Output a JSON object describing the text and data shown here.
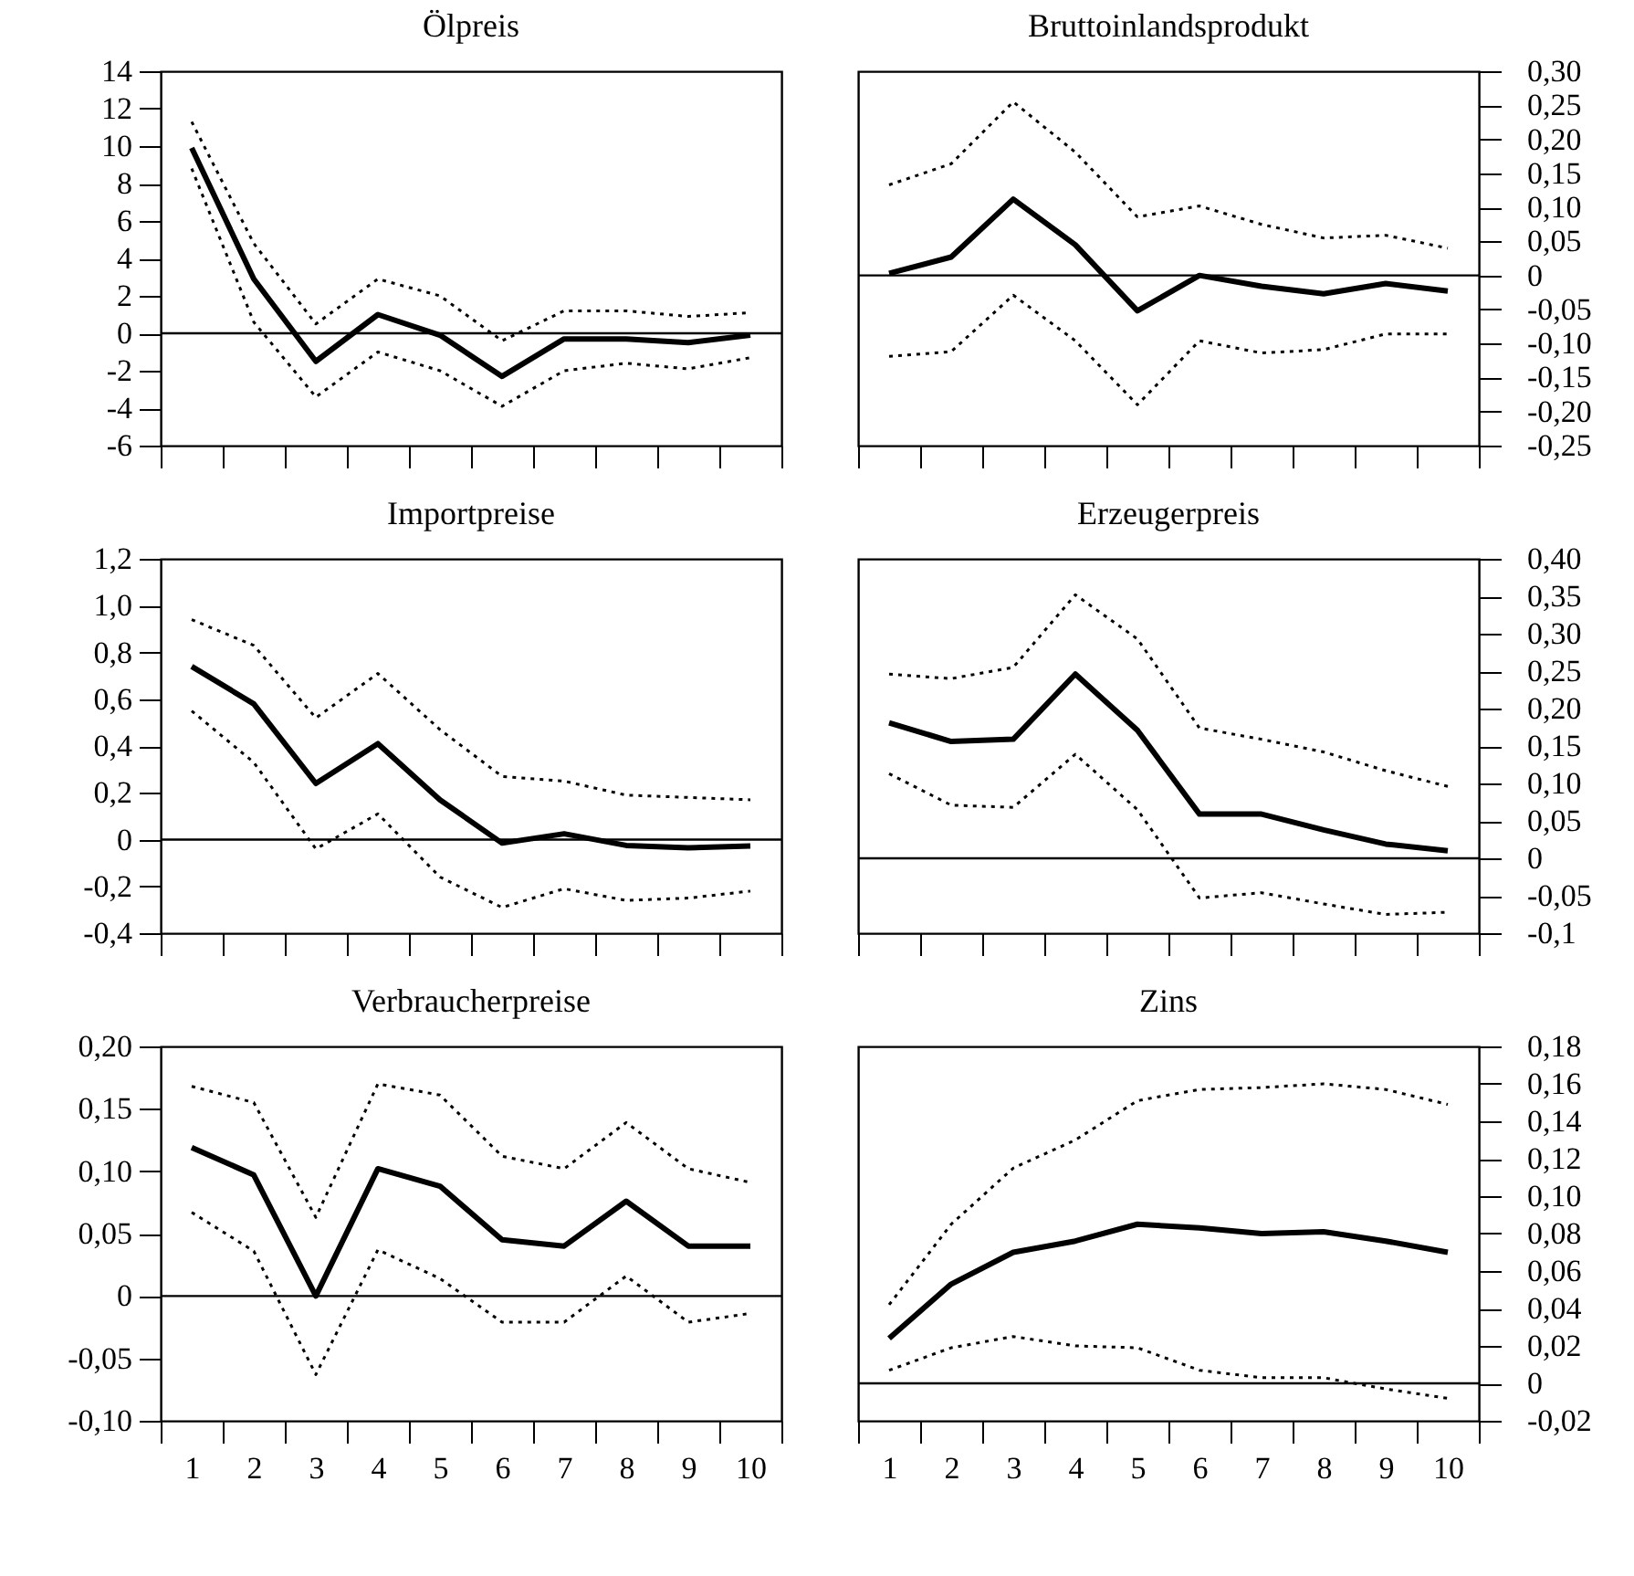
{
  "chart_data": [
    {
      "type": "line",
      "title": "Ölpreis",
      "categories": [
        "1",
        "2",
        "3",
        "4",
        "5",
        "6",
        "7",
        "8",
        "9",
        "10"
      ],
      "ylim": [
        -6,
        14
      ],
      "yticks": [
        -6,
        -4,
        -2,
        0,
        2,
        4,
        6,
        8,
        10,
        12,
        14
      ],
      "tick_labels": "y",
      "ref_lines": [
        {
          "axis": "y",
          "value": 0
        }
      ],
      "series": [
        {
          "color": "#000000",
          "line_style": "solid",
          "values": [
            9.9,
            2.9,
            -1.5,
            1.0,
            -0.1,
            -2.3,
            -0.3,
            -0.3,
            -0.5,
            -0.1
          ]
        },
        {
          "color": "#000000",
          "line_style": "dotted",
          "values": [
            11.3,
            4.8,
            0.5,
            2.9,
            2.0,
            -0.4,
            1.2,
            1.2,
            0.9,
            1.1
          ]
        },
        {
          "color": "#000000",
          "line_style": "dotted",
          "values": [
            8.8,
            0.6,
            -3.4,
            -1.0,
            -2.0,
            -3.9,
            -2.0,
            -1.6,
            -1.9,
            -1.3
          ]
        }
      ]
    },
    {
      "type": "line",
      "title": "Bruttoinlandsprodukt",
      "categories": [
        "1",
        "2",
        "3",
        "4",
        "5",
        "6",
        "7",
        "8",
        "9",
        "10"
      ],
      "ylim": [
        -0.25,
        0.3
      ],
      "yticks": [
        {
          "value": -0.25,
          "label": "-0,25"
        },
        {
          "value": -0.2,
          "label": "-0,20"
        },
        {
          "value": -0.15,
          "label": "-0,15"
        },
        {
          "value": -0.1,
          "label": "-0,10"
        },
        {
          "value": -0.05,
          "label": "-0,05"
        },
        0,
        {
          "value": 0.05,
          "label": "0,05"
        },
        {
          "value": 0.1,
          "label": "0,10"
        },
        {
          "value": 0.15,
          "label": "0,15"
        },
        {
          "value": 0.2,
          "label": "0,20"
        },
        {
          "value": 0.25,
          "label": "0,25"
        },
        {
          "value": 0.3,
          "label": "0,30"
        }
      ],
      "tick_labels": "y",
      "ref_lines": [
        {
          "axis": "y",
          "value": 0
        }
      ],
      "series": [
        {
          "color": "#000000",
          "line_style": "solid",
          "values": [
            0.003,
            0.027,
            0.112,
            0.045,
            -0.052,
            0,
            -0.016,
            -0.027,
            -0.012,
            -0.023
          ]
        },
        {
          "color": "#000000",
          "line_style": "dotted",
          "values": [
            0.133,
            0.164,
            0.255,
            0.181,
            0.086,
            0.102,
            0.075,
            0.055,
            0.059,
            0.04
          ]
        },
        {
          "color": "#000000",
          "line_style": "dotted",
          "values": [
            -0.119,
            -0.112,
            -0.029,
            -0.096,
            -0.19,
            -0.096,
            -0.114,
            -0.109,
            -0.086,
            -0.086
          ]
        }
      ]
    },
    {
      "type": "line",
      "title": "Importpreise",
      "categories": [
        "1",
        "2",
        "3",
        "4",
        "5",
        "6",
        "7",
        "8",
        "9",
        "10"
      ],
      "ylim": [
        -0.4,
        1.2
      ],
      "yticks": [
        {
          "value": -0.4,
          "label": "-0,4"
        },
        {
          "value": -0.2,
          "label": "-0,2"
        },
        0,
        {
          "value": 0.2,
          "label": "0,2"
        },
        {
          "value": 0.4,
          "label": "0,4"
        },
        {
          "value": 0.6,
          "label": "0,6"
        },
        {
          "value": 0.8,
          "label": "0,8"
        },
        {
          "value": 1.0,
          "label": "1,0"
        },
        {
          "value": 1.2,
          "label": "1,2"
        }
      ],
      "tick_labels": "y",
      "ref_lines": [
        {
          "axis": "y",
          "value": 0
        }
      ],
      "series": [
        {
          "color": "#000000",
          "line_style": "solid",
          "values": [
            0.74,
            0.58,
            0.24,
            0.41,
            0.17,
            -0.015,
            0.025,
            -0.025,
            -0.035,
            -0.027
          ]
        },
        {
          "color": "#000000",
          "line_style": "dotted",
          "values": [
            0.94,
            0.83,
            0.52,
            0.71,
            0.47,
            0.27,
            0.25,
            0.19,
            0.18,
            0.17
          ]
        },
        {
          "color": "#000000",
          "line_style": "dotted",
          "values": [
            0.55,
            0.33,
            -0.04,
            0.11,
            -0.16,
            -0.29,
            -0.21,
            -0.26,
            -0.25,
            -0.22
          ]
        }
      ]
    },
    {
      "type": "line",
      "title": "Erzeugerpreis",
      "categories": [
        "1",
        "2",
        "3",
        "4",
        "5",
        "6",
        "7",
        "8",
        "9",
        "10"
      ],
      "ylim": [
        -0.1,
        0.4
      ],
      "yticks": [
        {
          "value": -0.1,
          "label": "-0,1"
        },
        {
          "value": -0.05,
          "label": "-0,05"
        },
        0,
        {
          "value": 0.05,
          "label": "0,05"
        },
        {
          "value": 0.1,
          "label": "0,10"
        },
        {
          "value": 0.15,
          "label": "0,15"
        },
        {
          "value": 0.2,
          "label": "0,20"
        },
        {
          "value": 0.25,
          "label": "0,25"
        },
        {
          "value": 0.3,
          "label": "0,30"
        },
        {
          "value": 0.35,
          "label": "0,35"
        },
        {
          "value": 0.4,
          "label": "0,40"
        }
      ],
      "tick_labels": "y",
      "ref_lines": [
        {
          "axis": "y",
          "value": 0
        }
      ],
      "series": [
        {
          "color": "#000000",
          "line_style": "solid",
          "values": [
            0.181,
            0.156,
            0.159,
            0.246,
            0.171,
            0.059,
            0.059,
            0.038,
            0.019,
            0.01
          ]
        },
        {
          "color": "#000000",
          "line_style": "dotted",
          "values": [
            0.246,
            0.24,
            0.255,
            0.352,
            0.293,
            0.174,
            0.159,
            0.142,
            0.117,
            0.096
          ]
        },
        {
          "color": "#000000",
          "line_style": "dotted",
          "values": [
            0.113,
            0.071,
            0.068,
            0.139,
            0.065,
            -0.053,
            -0.046,
            -0.061,
            -0.075,
            -0.072
          ]
        }
      ]
    },
    {
      "type": "line",
      "title": "Verbraucherpreise",
      "categories": [
        "1",
        "2",
        "3",
        "4",
        "5",
        "6",
        "7",
        "8",
        "9",
        "10"
      ],
      "ylim": [
        -0.1,
        0.2
      ],
      "yticks": [
        {
          "value": -0.1,
          "label": "-0,10"
        },
        {
          "value": -0.05,
          "label": "-0,05"
        },
        0,
        {
          "value": 0.05,
          "label": "0,05"
        },
        {
          "value": 0.1,
          "label": "0,10"
        },
        {
          "value": 0.15,
          "label": "0,15"
        },
        {
          "value": 0.2,
          "label": "0,20"
        }
      ],
      "ref_lines": [
        {
          "axis": "y",
          "value": 0
        }
      ],
      "series": [
        {
          "color": "#000000",
          "line_style": "solid",
          "values": [
            0.119,
            0.097,
            0,
            0.102,
            0.088,
            0.045,
            0.04,
            0.076,
            0.04,
            0.04
          ]
        },
        {
          "color": "#000000",
          "line_style": "dotted",
          "values": [
            0.168,
            0.155,
            0.063,
            0.17,
            0.161,
            0.112,
            0.102,
            0.139,
            0.102,
            0.091
          ]
        },
        {
          "color": "#000000",
          "line_style": "dotted",
          "values": [
            0.067,
            0.036,
            -0.063,
            0.037,
            0.014,
            -0.021,
            -0.021,
            0.016,
            -0.021,
            -0.014
          ]
        }
      ]
    },
    {
      "type": "line",
      "title": "Zins",
      "categories": [
        "1",
        "2",
        "3",
        "4",
        "5",
        "6",
        "7",
        "8",
        "9",
        "10"
      ],
      "ylim": [
        -0.02,
        0.18
      ],
      "yticks": [
        {
          "value": -0.02,
          "label": "-0,02"
        },
        0,
        {
          "value": 0.02,
          "label": "0,02"
        },
        {
          "value": 0.04,
          "label": "0,04"
        },
        {
          "value": 0.06,
          "label": "0,06"
        },
        {
          "value": 0.08,
          "label": "0,08"
        },
        {
          "value": 0.1,
          "label": "0,10"
        },
        {
          "value": 0.12,
          "label": "0,12"
        },
        {
          "value": 0.14,
          "label": "0,14"
        },
        {
          "value": 0.16,
          "label": "0,16"
        },
        {
          "value": 0.18,
          "label": "0,18"
        }
      ],
      "ref_lines": [
        {
          "axis": "y",
          "value": 0
        }
      ],
      "series": [
        {
          "color": "#000000",
          "line_style": "solid",
          "values": [
            0.024,
            0.053,
            0.07,
            0.076,
            0.085,
            0.083,
            0.08,
            0.081,
            0.076,
            0.07
          ]
        },
        {
          "color": "#000000",
          "line_style": "dotted",
          "values": [
            0.042,
            0.085,
            0.115,
            0.13,
            0.151,
            0.157,
            0.158,
            0.16,
            0.157,
            0.149
          ]
        },
        {
          "color": "#000000",
          "line_style": "dotted",
          "values": [
            0.007,
            0.019,
            0.025,
            0.02,
            0.019,
            0.007,
            0.003,
            0.003,
            -0.003,
            -0.008
          ]
        }
      ]
    }
  ]
}
